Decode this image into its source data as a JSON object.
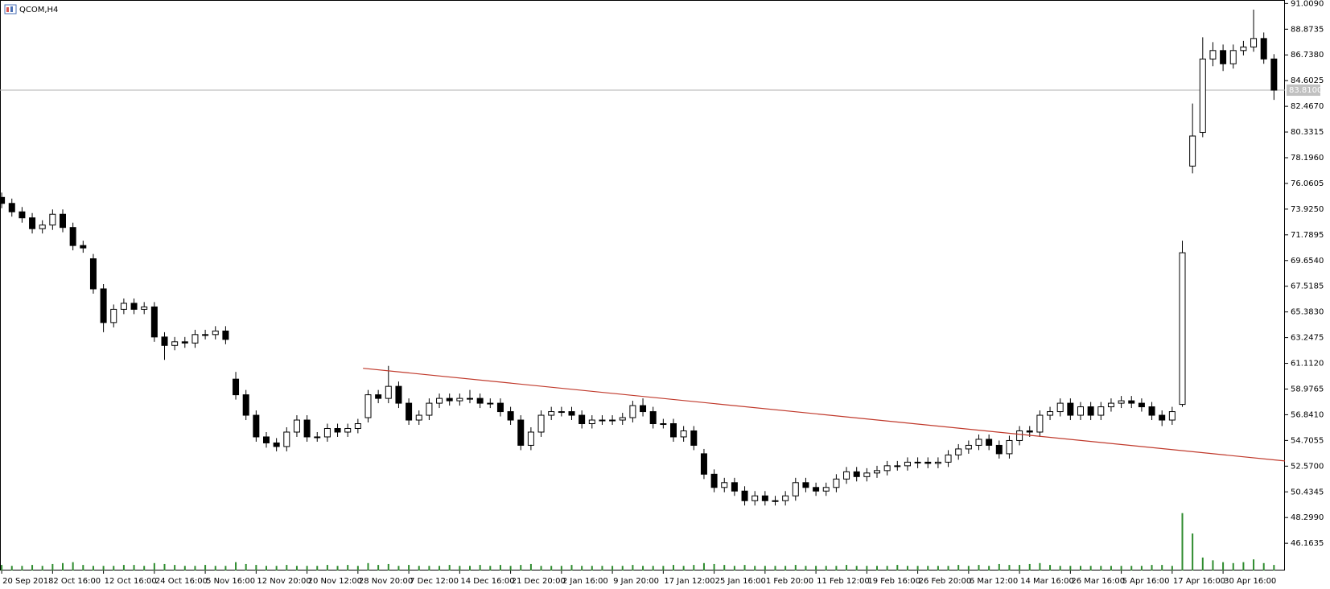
{
  "chart_data": {
    "type": "candlestick",
    "title": "QCOM,H4",
    "categories": [
      "20 Sep 2018",
      null,
      null,
      null,
      null,
      "2 Oct 16:00",
      null,
      null,
      null,
      null,
      "12 Oct 16:00",
      null,
      null,
      null,
      null,
      "24 Oct 16:00",
      null,
      null,
      null,
      null,
      "5 Nov 16:00",
      null,
      null,
      null,
      null,
      "12 Nov 20:00",
      null,
      null,
      null,
      null,
      "20 Nov 12:00",
      null,
      null,
      null,
      null,
      "28 Nov 20:00",
      null,
      null,
      null,
      null,
      "7 Dec 12:00",
      null,
      null,
      null,
      null,
      "14 Dec 16:00",
      null,
      null,
      null,
      null,
      "21 Dec 20:00",
      null,
      null,
      null,
      null,
      "2 Jan 16:00",
      null,
      null,
      null,
      null,
      "9 Jan 20:00",
      null,
      null,
      null,
      null,
      "17 Jan 12:00",
      null,
      null,
      null,
      null,
      "25 Jan 16:00",
      null,
      null,
      null,
      null,
      "1 Feb 20:00",
      null,
      null,
      null,
      null,
      "11 Feb 12:00",
      null,
      null,
      null,
      null,
      "19 Feb 16:00",
      null,
      null,
      null,
      null,
      "26 Feb 20:00",
      null,
      null,
      null,
      null,
      "6 Mar 12:00",
      null,
      null,
      null,
      null,
      "14 Mar 16:00",
      null,
      null,
      null,
      null,
      "26 Mar 16:00",
      null,
      null,
      null,
      null,
      "5 Apr 16:00",
      null,
      null,
      null,
      null,
      "17 Apr 16:00",
      null,
      null,
      null,
      null,
      "30 Apr 16:00",
      null,
      null,
      null,
      null,
      null
    ],
    "open": [
      74.9,
      74.4,
      73.7,
      73.2,
      72.3,
      72.6,
      73.5,
      72.4,
      70.9,
      69.8,
      67.3,
      64.5,
      65.6,
      66.1,
      65.6,
      65.8,
      63.3,
      62.6,
      62.9,
      62.8,
      63.5,
      63.5,
      63.8,
      59.8,
      58.5,
      56.8,
      55.0,
      54.5,
      54.2,
      55.4,
      56.4,
      55.0,
      55.0,
      55.7,
      55.4,
      55.7,
      56.6,
      58.5,
      58.2,
      59.2,
      57.8,
      56.4,
      56.8,
      57.8,
      58.2,
      58.0,
      58.2,
      58.2,
      57.8,
      57.8,
      57.1,
      56.4,
      54.3,
      55.4,
      56.8,
      57.1,
      57.1,
      56.8,
      56.1,
      56.4,
      56.4,
      56.4,
      56.6,
      57.6,
      57.1,
      56.1,
      56.1,
      55.0,
      55.5,
      53.6,
      51.9,
      50.8,
      51.2,
      50.5,
      49.7,
      50.1,
      49.7,
      49.7,
      50.1,
      51.2,
      50.8,
      50.5,
      50.8,
      51.5,
      52.1,
      51.7,
      52.0,
      52.2,
      52.6,
      52.6,
      52.9,
      52.9,
      52.8,
      52.9,
      53.5,
      54.0,
      54.3,
      54.8,
      54.3,
      53.6,
      54.7,
      55.5,
      55.4,
      56.8,
      57.1,
      57.8,
      56.8,
      57.5,
      56.8,
      57.5,
      57.8,
      58.0,
      57.8,
      57.5,
      56.8,
      56.4,
      57.7,
      77.5,
      80.3,
      86.4,
      87.1,
      86.0,
      87.1,
      87.4,
      88.1,
      86.4
    ],
    "high": [
      75.3,
      74.8,
      74.1,
      73.6,
      73.0,
      73.9,
      73.9,
      72.8,
      71.3,
      70.2,
      67.7,
      66.0,
      66.5,
      66.5,
      66.2,
      66.2,
      63.7,
      63.3,
      63.3,
      63.9,
      63.9,
      64.2,
      64.2,
      60.4,
      58.9,
      57.2,
      55.4,
      54.9,
      55.8,
      56.8,
      56.8,
      55.4,
      56.1,
      56.1,
      56.1,
      56.5,
      58.9,
      58.9,
      60.9,
      59.6,
      58.2,
      57.2,
      58.2,
      58.6,
      58.6,
      58.6,
      58.9,
      58.6,
      58.2,
      58.2,
      57.5,
      56.8,
      55.8,
      57.2,
      57.5,
      57.5,
      57.5,
      57.2,
      56.8,
      56.8,
      56.8,
      57.0,
      58.0,
      58.2,
      57.5,
      56.5,
      56.5,
      55.9,
      55.9,
      54.0,
      52.3,
      51.6,
      51.6,
      50.9,
      50.5,
      50.5,
      50.1,
      50.5,
      51.6,
      51.6,
      51.2,
      51.2,
      51.9,
      52.5,
      52.5,
      52.4,
      52.6,
      53.0,
      53.0,
      53.3,
      53.3,
      53.3,
      53.3,
      53.9,
      54.4,
      54.7,
      55.2,
      55.2,
      54.7,
      55.1,
      55.9,
      55.9,
      57.2,
      57.5,
      58.2,
      58.2,
      57.9,
      57.9,
      57.9,
      58.2,
      58.4,
      58.4,
      58.2,
      57.9,
      57.2,
      57.5,
      71.3,
      82.7,
      88.2,
      87.8,
      87.6,
      87.6,
      87.9,
      90.5,
      88.6,
      86.8
    ],
    "low": [
      74.0,
      73.3,
      72.8,
      71.9,
      71.9,
      72.2,
      72.0,
      70.5,
      70.3,
      66.9,
      63.7,
      64.1,
      65.2,
      65.2,
      65.2,
      62.9,
      61.4,
      62.2,
      62.4,
      62.4,
      63.1,
      63.1,
      62.7,
      58.1,
      56.4,
      54.6,
      54.1,
      53.8,
      53.8,
      55.0,
      54.6,
      54.6,
      54.6,
      55.0,
      55.0,
      55.3,
      56.2,
      57.8,
      57.8,
      57.4,
      56.0,
      56.0,
      56.4,
      57.4,
      57.6,
      57.6,
      57.8,
      57.4,
      57.4,
      56.7,
      56.0,
      53.9,
      53.9,
      55.0,
      56.4,
      56.7,
      56.4,
      55.7,
      55.7,
      56.0,
      56.0,
      56.0,
      56.2,
      56.7,
      55.7,
      55.7,
      54.6,
      54.6,
      53.9,
      51.5,
      50.4,
      50.4,
      50.1,
      49.3,
      49.3,
      49.3,
      49.3,
      49.3,
      49.7,
      50.4,
      50.1,
      50.1,
      50.4,
      51.1,
      51.3,
      51.3,
      51.6,
      51.8,
      52.2,
      52.2,
      52.4,
      52.4,
      52.4,
      52.5,
      53.1,
      53.6,
      53.9,
      53.9,
      53.2,
      53.2,
      54.3,
      55.0,
      55.0,
      56.4,
      56.7,
      56.4,
      56.4,
      56.4,
      56.4,
      57.1,
      57.4,
      57.4,
      57.1,
      56.4,
      55.9,
      56.0,
      57.5,
      76.9,
      79.9,
      85.8,
      85.4,
      85.6,
      86.7,
      87.0,
      86.0,
      83.0
    ],
    "close": [
      74.4,
      73.7,
      73.2,
      72.3,
      72.6,
      73.5,
      72.4,
      70.9,
      70.7,
      67.3,
      64.5,
      65.6,
      66.1,
      65.6,
      65.8,
      63.3,
      62.6,
      62.9,
      62.8,
      63.5,
      63.5,
      63.8,
      63.1,
      58.5,
      56.8,
      55.0,
      54.5,
      54.2,
      55.4,
      56.4,
      55.0,
      55.0,
      55.7,
      55.4,
      55.7,
      56.1,
      58.5,
      58.2,
      59.2,
      57.8,
      56.4,
      56.8,
      57.8,
      58.2,
      58.0,
      58.2,
      58.2,
      57.8,
      57.8,
      57.1,
      56.4,
      54.3,
      55.4,
      56.8,
      57.1,
      57.1,
      56.8,
      56.1,
      56.4,
      56.4,
      56.4,
      56.6,
      57.6,
      57.1,
      56.1,
      56.1,
      55.0,
      55.5,
      54.3,
      51.9,
      50.8,
      51.2,
      50.5,
      49.7,
      50.1,
      49.7,
      49.7,
      50.1,
      51.2,
      50.8,
      50.5,
      50.8,
      51.5,
      52.1,
      51.7,
      52.0,
      52.2,
      52.6,
      52.6,
      52.9,
      52.9,
      52.8,
      52.9,
      53.5,
      54.0,
      54.3,
      54.8,
      54.3,
      53.6,
      54.7,
      55.5,
      55.4,
      56.8,
      57.1,
      57.8,
      56.8,
      57.5,
      56.8,
      57.5,
      57.8,
      58.0,
      57.8,
      57.5,
      56.8,
      56.4,
      57.1,
      70.3,
      80.0,
      86.4,
      87.1,
      86.0,
      87.1,
      87.4,
      88.1,
      86.4,
      83.81
    ],
    "volume": [
      6,
      5,
      5,
      6,
      5,
      7,
      8,
      9,
      6,
      5,
      5,
      5,
      6,
      6,
      5,
      8,
      7,
      6,
      5,
      5,
      6,
      5,
      5,
      9,
      7,
      6,
      5,
      5,
      6,
      5,
      5,
      5,
      6,
      5,
      6,
      5,
      8,
      6,
      7,
      5,
      6,
      5,
      5,
      5,
      6,
      5,
      5,
      6,
      5,
      6,
      5,
      6,
      7,
      5,
      5,
      5,
      6,
      5,
      5,
      5,
      5,
      5,
      6,
      5,
      5,
      5,
      6,
      5,
      6,
      8,
      7,
      6,
      5,
      6,
      5,
      5,
      5,
      5,
      6,
      5,
      5,
      5,
      5,
      6,
      5,
      5,
      5,
      5,
      6,
      5,
      5,
      5,
      5,
      5,
      6,
      5,
      6,
      5,
      7,
      6,
      6,
      7,
      8,
      6,
      5,
      5,
      5,
      5,
      5,
      5,
      5,
      5,
      5,
      6,
      6,
      5,
      62,
      40,
      14,
      11,
      9,
      8,
      9,
      12,
      8,
      6
    ],
    "up_color": "#ffffff",
    "down_color": "#000000",
    "volume_color": "#2e8b2e",
    "ylim": [
      43.9,
      91.3
    ],
    "yticks": [
      {
        "value": 91.009,
        "label": "91.0090"
      },
      {
        "value": 88.8735,
        "label": "88.8735"
      },
      {
        "value": 86.738,
        "label": "86.7380"
      },
      {
        "value": 84.6025,
        "label": "84.6025"
      },
      {
        "value": 82.467,
        "label": "82.4670"
      },
      {
        "value": 80.3315,
        "label": "80.3315"
      },
      {
        "value": 78.196,
        "label": "78.1960"
      },
      {
        "value": 76.0605,
        "label": "76.0605"
      },
      {
        "value": 73.925,
        "label": "73.9250"
      },
      {
        "value": 71.7895,
        "label": "71.7895"
      },
      {
        "value": 69.654,
        "label": "69.6540"
      },
      {
        "value": 67.5185,
        "label": "67.5185"
      },
      {
        "value": 65.383,
        "label": "65.3830"
      },
      {
        "value": 63.2475,
        "label": "63.2475"
      },
      {
        "value": 61.112,
        "label": "61.1120"
      },
      {
        "value": 58.9765,
        "label": "58.9765"
      },
      {
        "value": 56.841,
        "label": "56.8410"
      },
      {
        "value": 54.7055,
        "label": "54.7055"
      },
      {
        "value": 52.57,
        "label": "52.5700"
      },
      {
        "value": 50.4345,
        "label": "50.4345"
      },
      {
        "value": 48.299,
        "label": "48.2990"
      },
      {
        "value": 46.1635,
        "label": "46.1635"
      }
    ],
    "last_price": {
      "value": 83.81,
      "label": "83.8100"
    },
    "trendline": {
      "x": [
        35.5,
        126.1
      ],
      "y": [
        60.7,
        53.0
      ],
      "color": "#c0392b"
    }
  }
}
